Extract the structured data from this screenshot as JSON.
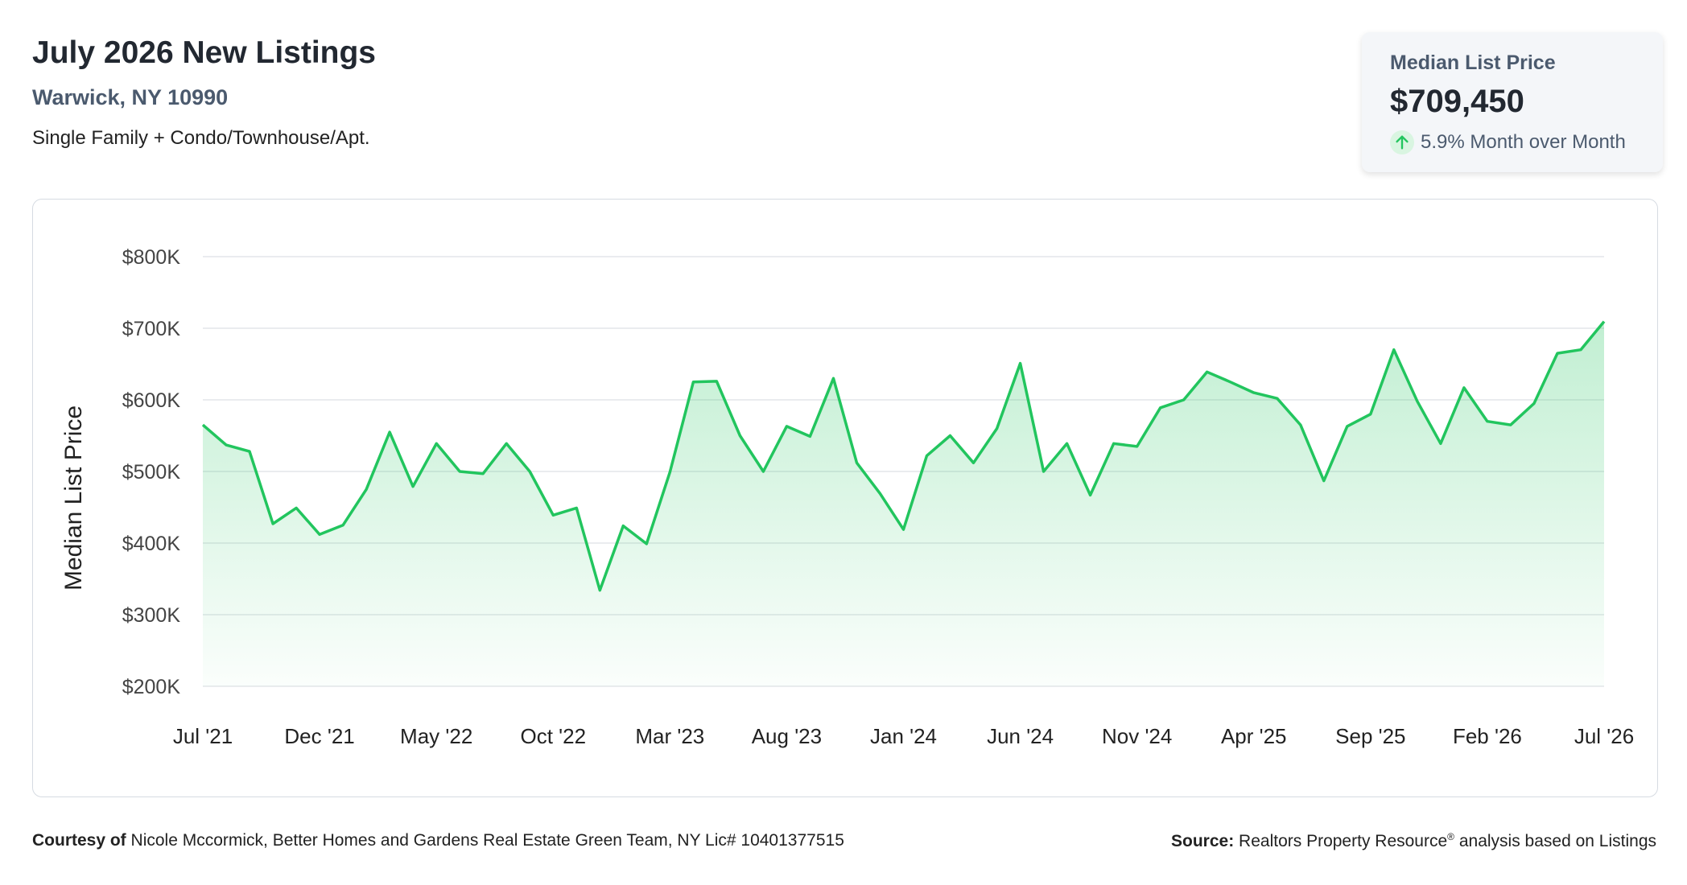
{
  "header": {
    "title": "July 2026 New Listings",
    "location": "Warwick, NY 10990",
    "property_types": "Single Family + Condo/Townhouse/Apt."
  },
  "stat_card": {
    "label": "Median List Price",
    "value": "$709,450",
    "change": "5.9% Month over Month",
    "direction_icon": "arrow-up-icon",
    "accent": "#22c55e"
  },
  "footer": {
    "courtesy_label": "Courtesy of",
    "courtesy_text": "Nicole Mccormick, Better Homes and Gardens Real Estate Green Team, NY Lic# 10401377515",
    "source_label": "Source:",
    "source_text": "Realtors Property Resource",
    "source_reg": "®",
    "source_suffix": "analysis based on Listings"
  },
  "chart_data": {
    "type": "area",
    "ylabel": "Median List Price",
    "ylim": [
      200000,
      800000
    ],
    "yticks": [
      200000,
      300000,
      400000,
      500000,
      600000,
      700000,
      800000
    ],
    "ytick_labels": [
      "$200K",
      "$300K",
      "$400K",
      "$500K",
      "$600K",
      "$700K",
      "$800K"
    ],
    "xtick_labels": [
      "Jul '21",
      "Dec '21",
      "May '22",
      "Oct '22",
      "Mar '23",
      "Aug '23",
      "Jan '24",
      "Jun '24",
      "Nov '24",
      "Apr '25",
      "Sep '25",
      "Feb '26",
      "Jul '26"
    ],
    "xtick_index_step": 5,
    "grid": true,
    "line_color": "#22c55e",
    "fill_color": "#22c55e",
    "x": [
      "Jul '21",
      "Aug '21",
      "Sep '21",
      "Oct '21",
      "Nov '21",
      "Dec '21",
      "Jan '22",
      "Feb '22",
      "Mar '22",
      "Apr '22",
      "May '22",
      "Jun '22",
      "Jul '22",
      "Aug '22",
      "Sep '22",
      "Oct '22",
      "Nov '22",
      "Dec '22",
      "Jan '23",
      "Feb '23",
      "Mar '23",
      "Apr '23",
      "May '23",
      "Jun '23",
      "Jul '23",
      "Aug '23",
      "Sep '23",
      "Oct '23",
      "Nov '23",
      "Dec '23",
      "Jan '24",
      "Feb '24",
      "Mar '24",
      "Apr '24",
      "May '24",
      "Jun '24",
      "Jul '24",
      "Aug '24",
      "Sep '24",
      "Oct '24",
      "Nov '24",
      "Dec '24",
      "Jan '25",
      "Feb '25",
      "Mar '25",
      "Apr '25",
      "May '25",
      "Jun '25",
      "Jul '25",
      "Aug '25",
      "Sep '25",
      "Oct '25",
      "Nov '25",
      "Dec '25",
      "Jan '26",
      "Feb '26",
      "Mar '26",
      "Apr '26",
      "May '26",
      "Jun '26",
      "Jul '26"
    ],
    "series": [
      {
        "values": [
          565000,
          537000,
          528000,
          427000,
          449000,
          412000,
          425000,
          475000,
          555000,
          479000,
          539000,
          500000,
          497000,
          539000,
          500000,
          439000,
          449000,
          334000,
          424000,
          399000,
          499000,
          625000,
          626000,
          550000,
          500000,
          563000,
          549000,
          630000,
          512000,
          469000,
          419000,
          522000,
          550000,
          512000,
          560000,
          651000,
          500000,
          539000,
          467000,
          539000,
          535000,
          589000,
          600000,
          639000,
          625000,
          610000,
          602000,
          565000,
          487000,
          563000,
          580000,
          670000,
          598000,
          539000,
          617000,
          570000,
          565000,
          595000,
          665000,
          670000,
          709450
        ]
      }
    ]
  }
}
